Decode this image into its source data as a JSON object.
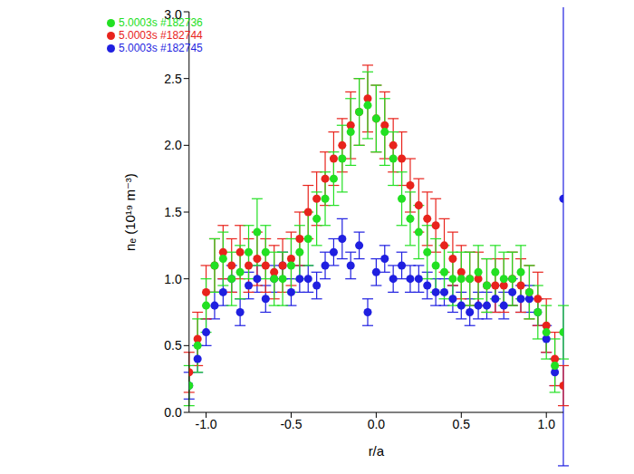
{
  "chart_data": {
    "type": "scatter",
    "xlabel": "r/a",
    "ylabel": "nₑ (10¹⁹ m⁻³)",
    "xlim": [
      -1.1,
      1.1
    ],
    "ylim": [
      0,
      3
    ],
    "xticks": [
      {
        "value": -1,
        "label": "-1.0"
      },
      {
        "value": -0.5,
        "label": "-0.5"
      },
      {
        "value": 0,
        "label": "0.0"
      },
      {
        "value": 0.5,
        "label": "0.5"
      },
      {
        "value": 1,
        "label": "1.0"
      }
    ],
    "yticks": [
      {
        "value": 0,
        "label": "0.0"
      },
      {
        "value": 0.5,
        "label": "0.5"
      },
      {
        "value": 1,
        "label": "1.0"
      },
      {
        "value": 1.5,
        "label": "1.5"
      },
      {
        "value": 2,
        "label": "2.0"
      },
      {
        "value": 2.5,
        "label": "2.5"
      },
      {
        "value": 3,
        "label": "3.0"
      }
    ],
    "grid": false,
    "legend": "upper left",
    "marker": "circle",
    "x": [
      -1.1,
      -1.05,
      -1.0,
      -0.95,
      -0.9,
      -0.85,
      -0.8,
      -0.75,
      -0.7,
      -0.65,
      -0.6,
      -0.55,
      -0.5,
      -0.45,
      -0.4,
      -0.35,
      -0.3,
      -0.25,
      -0.2,
      -0.15,
      -0.1,
      -0.05,
      0.0,
      0.05,
      0.1,
      0.15,
      0.2,
      0.25,
      0.3,
      0.35,
      0.4,
      0.45,
      0.5,
      0.55,
      0.6,
      0.65,
      0.7,
      0.75,
      0.8,
      0.85,
      0.9,
      0.95,
      1.0,
      1.05,
      1.1
    ],
    "series": [
      {
        "name": "5.0003s #182745",
        "color": "#1f1fe0",
        "values": [
          0.2,
          0.4,
          0.6,
          0.8,
          0.9,
          1.0,
          0.75,
          0.95,
          1.0,
          0.85,
          1.0,
          1.1,
          0.9,
          1.0,
          1.0,
          0.95,
          1.1,
          1.2,
          1.3,
          1.1,
          1.25,
          0.75,
          1.05,
          1.15,
          1.0,
          1.1,
          1.0,
          1.0,
          0.95,
          0.9,
          0.9,
          0.85,
          0.8,
          0.75,
          0.8,
          0.8,
          0.85,
          0.8,
          0.9,
          0.85,
          0.85,
          0.75,
          0.55,
          0.3,
          1.6
        ],
        "errors": [
          0.1,
          0.1,
          0.1,
          0.1,
          0.1,
          0.1,
          0.1,
          0.1,
          0.1,
          0.1,
          0.1,
          0.1,
          0.1,
          0.1,
          0.1,
          0.1,
          0.1,
          0.1,
          0.15,
          0.1,
          0.1,
          0.1,
          0.1,
          0.1,
          0.1,
          0.1,
          0.1,
          0.1,
          0.1,
          0.1,
          0.1,
          0.1,
          0.1,
          0.1,
          0.1,
          0.1,
          0.1,
          0.1,
          0.1,
          0.1,
          0.1,
          0.1,
          0.1,
          0.1,
          2.0
        ]
      },
      {
        "name": "5.0003s #182744",
        "color": "#e8231c",
        "values": [
          0.3,
          0.55,
          0.9,
          1.1,
          1.2,
          1.1,
          1.2,
          1.1,
          1.15,
          1.1,
          1.05,
          1.1,
          1.15,
          1.3,
          1.5,
          1.6,
          1.75,
          1.9,
          2.0,
          2.15,
          2.25,
          2.35,
          2.2,
          2.15,
          2.0,
          1.9,
          1.7,
          1.55,
          1.45,
          1.4,
          1.25,
          1.15,
          1.05,
          1.0,
          1.0,
          0.95,
          0.95,
          0.95,
          1.0,
          0.95,
          0.9,
          0.85,
          0.65,
          0.4,
          0.2
        ],
        "errors": [
          0.15,
          0.2,
          0.2,
          0.2,
          0.2,
          0.2,
          0.2,
          0.2,
          0.2,
          0.2,
          0.2,
          0.2,
          0.2,
          0.2,
          0.2,
          0.2,
          0.2,
          0.2,
          0.2,
          0.25,
          0.25,
          0.25,
          0.25,
          0.25,
          0.2,
          0.2,
          0.2,
          0.2,
          0.2,
          0.2,
          0.2,
          0.2,
          0.2,
          0.2,
          0.2,
          0.2,
          0.2,
          0.2,
          0.2,
          0.2,
          0.2,
          0.2,
          0.2,
          0.2,
          0.15
        ]
      },
      {
        "name": "5.0003s #182736",
        "color": "#22e022",
        "values": [
          0.2,
          0.5,
          0.8,
          1.1,
          1.15,
          1.0,
          1.05,
          1.2,
          1.35,
          1.2,
          1.0,
          1.0,
          1.1,
          1.2,
          1.3,
          1.45,
          1.6,
          1.75,
          1.9,
          2.1,
          2.25,
          2.3,
          2.2,
          2.1,
          1.9,
          1.6,
          1.45,
          1.35,
          1.2,
          1.1,
          1.05,
          1.0,
          1.0,
          1.0,
          1.05,
          0.95,
          1.05,
          1.0,
          1.0,
          1.05,
          0.9,
          0.75,
          0.6,
          0.35,
          0.6
        ],
        "errors": [
          0.15,
          0.2,
          0.2,
          0.2,
          0.2,
          0.2,
          0.2,
          0.2,
          0.25,
          0.2,
          0.2,
          0.2,
          0.2,
          0.2,
          0.2,
          0.2,
          0.2,
          0.2,
          0.25,
          0.25,
          0.25,
          0.25,
          0.25,
          0.25,
          0.2,
          0.2,
          0.2,
          0.2,
          0.2,
          0.2,
          0.2,
          0.2,
          0.2,
          0.2,
          0.2,
          0.2,
          0.2,
          0.2,
          0.2,
          0.2,
          0.2,
          0.2,
          0.2,
          0.2,
          0.2
        ]
      }
    ]
  }
}
